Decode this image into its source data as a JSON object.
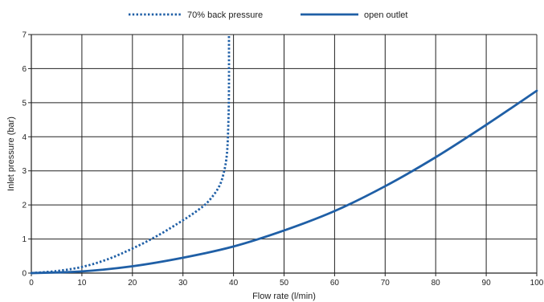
{
  "chart_data": {
    "type": "line",
    "title": "",
    "xlabel": "Flow rate (l/min)",
    "ylabel": "Inlet pressure (bar)",
    "xlim": [
      0,
      100
    ],
    "ylim": [
      0,
      7
    ],
    "x_ticks": [
      "0",
      "10",
      "20",
      "30",
      "40",
      "50",
      "60",
      "70",
      "80",
      "90",
      "100"
    ],
    "y_ticks": [
      "0",
      "1",
      "2",
      "3",
      "4",
      "5",
      "6",
      "7"
    ],
    "grid": true,
    "legend_position": "top-center",
    "series": [
      {
        "name": "70% back pressure",
        "style": "dotted",
        "color": "#1f5fa6",
        "points": [
          [
            0,
            0.0
          ],
          [
            5,
            0.06
          ],
          [
            10,
            0.18
          ],
          [
            15,
            0.4
          ],
          [
            20,
            0.72
          ],
          [
            25,
            1.1
          ],
          [
            30,
            1.55
          ],
          [
            33,
            1.85
          ],
          [
            35,
            2.1
          ],
          [
            37,
            2.5
          ],
          [
            38,
            2.9
          ],
          [
            38.7,
            3.5
          ],
          [
            39,
            4.5
          ],
          [
            39.1,
            5.5
          ],
          [
            39.1,
            7.0
          ]
        ]
      },
      {
        "name": "open outlet",
        "style": "solid",
        "color": "#1f5fa6",
        "points": [
          [
            0,
            0.0
          ],
          [
            10,
            0.05
          ],
          [
            20,
            0.2
          ],
          [
            30,
            0.45
          ],
          [
            40,
            0.78
          ],
          [
            50,
            1.25
          ],
          [
            60,
            1.82
          ],
          [
            70,
            2.55
          ],
          [
            80,
            3.4
          ],
          [
            90,
            4.35
          ],
          [
            100,
            5.35
          ]
        ]
      }
    ]
  }
}
